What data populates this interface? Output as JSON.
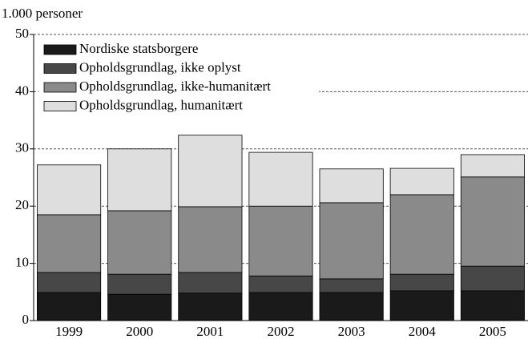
{
  "chart_data": {
    "type": "bar",
    "stacked": true,
    "ylabel": "1.000 personer",
    "categories": [
      "1999",
      "2000",
      "2001",
      "2002",
      "2003",
      "2004",
      "2005"
    ],
    "series": [
      {
        "name": "Nordiske statsborgere",
        "color": "#1a1a1a",
        "values": [
          4.9,
          4.6,
          4.8,
          4.9,
          4.9,
          5.2,
          5.2
        ]
      },
      {
        "name": "Opholdsgrundlag, ikke oplyst",
        "color": "#474747",
        "values": [
          3.5,
          3.5,
          3.6,
          2.9,
          2.4,
          2.9,
          4.3
        ]
      },
      {
        "name": "Opholdsgrundlag, ikke-humanitært",
        "color": "#8a8a8a",
        "values": [
          10.1,
          11.1,
          11.5,
          12.2,
          13.3,
          13.9,
          15.6
        ]
      },
      {
        "name": "Opholdsgrundlag, humanitært",
        "color": "#dedede",
        "values": [
          8.7,
          10.8,
          12.5,
          9.4,
          5.9,
          4.6,
          3.9
        ]
      }
    ],
    "ylim": [
      0,
      50
    ],
    "yticks": [
      0,
      10,
      20,
      30,
      40,
      50
    ],
    "grid": true,
    "legend": "upper left"
  }
}
